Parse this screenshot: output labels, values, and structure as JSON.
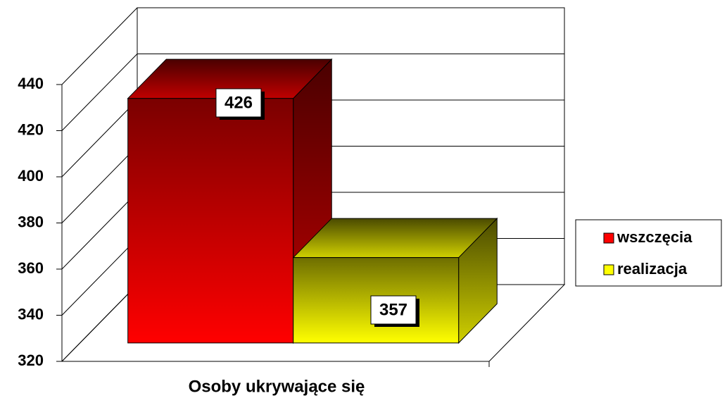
{
  "chart_data": {
    "type": "bar3d",
    "categories": [
      "Osoby ukrywające się"
    ],
    "series": [
      {
        "name": "wszczęcia",
        "color": "#ff0000",
        "values": [
          426
        ]
      },
      {
        "name": "realizacja",
        "color": "#ffff00",
        "values": [
          357
        ]
      }
    ],
    "ylim": [
      320,
      440
    ],
    "yticks": [
      320,
      340,
      360,
      380,
      400,
      420,
      440
    ],
    "grid": true,
    "legend": "right"
  }
}
